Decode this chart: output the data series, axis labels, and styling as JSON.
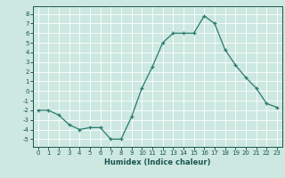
{
  "x": [
    0,
    1,
    2,
    3,
    4,
    5,
    6,
    7,
    8,
    9,
    10,
    11,
    12,
    13,
    14,
    15,
    16,
    17,
    18,
    19,
    20,
    21,
    22,
    23
  ],
  "y": [
    -2,
    -2,
    -2.5,
    -3.5,
    -4,
    -3.8,
    -3.8,
    -5,
    -5,
    -2.7,
    0.3,
    2.5,
    5,
    6,
    6,
    6,
    7.8,
    7,
    4.3,
    2.7,
    1.4,
    0.3,
    -1.3,
    -1.7
  ],
  "line_color": "#2a7a6f",
  "marker": "+",
  "bg_color": "#cce8e0",
  "grid_color": "#ffffff",
  "xlabel": "Humidex (Indice chaleur)",
  "xlim": [
    -0.5,
    23.5
  ],
  "ylim": [
    -5.8,
    8.8
  ],
  "yticks": [
    -5,
    -4,
    -3,
    -2,
    -1,
    0,
    1,
    2,
    3,
    4,
    5,
    6,
    7,
    8
  ],
  "xticks": [
    0,
    1,
    2,
    3,
    4,
    5,
    6,
    7,
    8,
    9,
    10,
    11,
    12,
    13,
    14,
    15,
    16,
    17,
    18,
    19,
    20,
    21,
    22,
    23
  ],
  "font_color": "#1a5550",
  "tick_fontsize": 5.0,
  "xlabel_fontsize": 6.0,
  "linewidth": 0.9,
  "markersize": 3.5,
  "markeredgewidth": 0.9
}
